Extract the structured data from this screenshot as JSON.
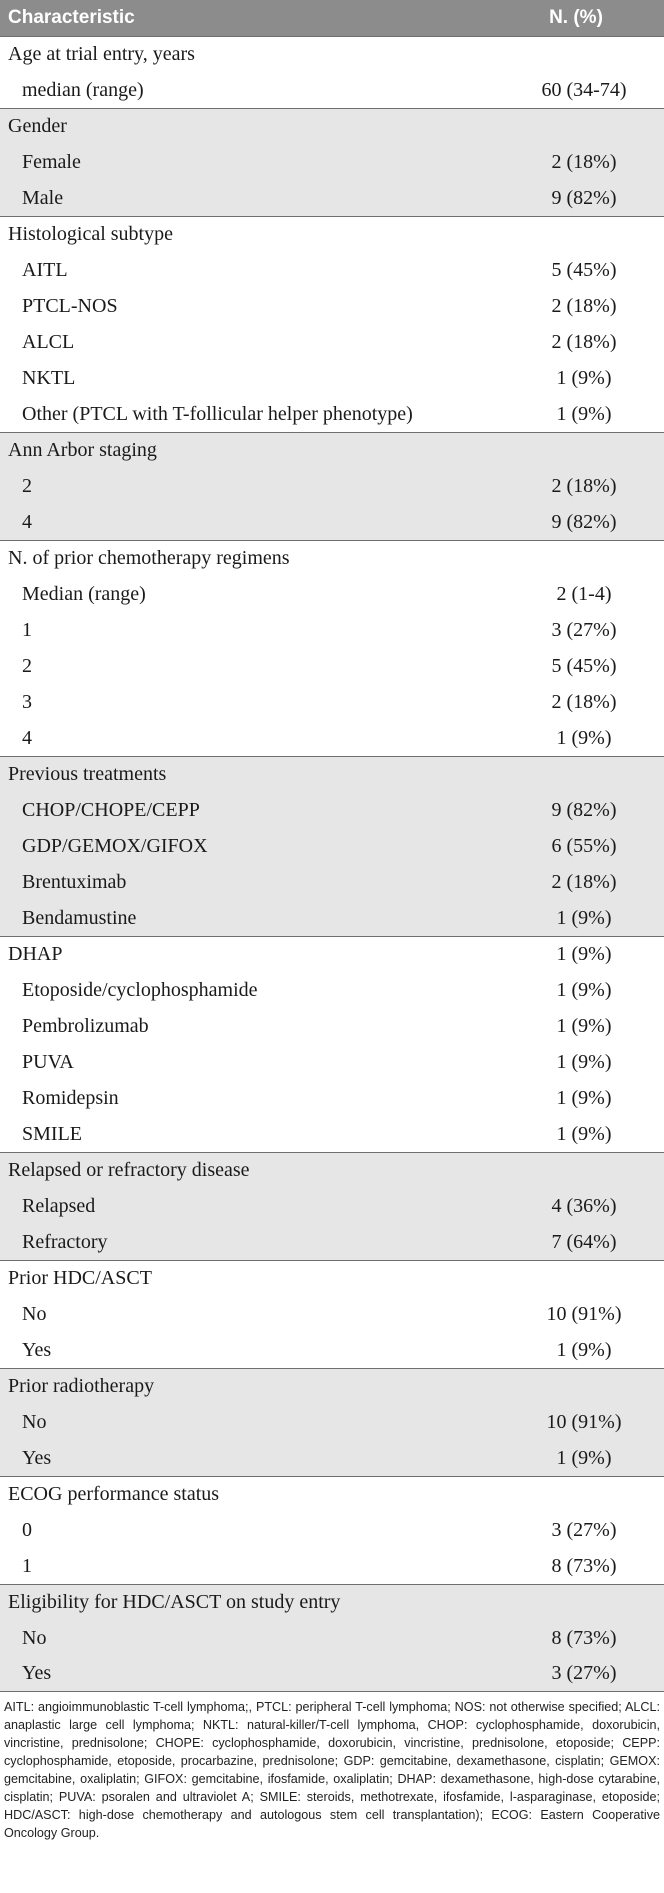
{
  "header": {
    "characteristic": "Characteristic",
    "n_pct": "N. (%)"
  },
  "rows": [
    {
      "label": "Age at trial entry, years",
      "value": "",
      "indent": false,
      "group_start": true,
      "shaded": false
    },
    {
      "label": "median (range)",
      "value": "60 (34-74)",
      "indent": true,
      "group_start": false,
      "shaded": false
    },
    {
      "label": "Gender",
      "value": "",
      "indent": false,
      "group_start": true,
      "shaded": true
    },
    {
      "label": "Female",
      "value": "2 (18%)",
      "indent": true,
      "group_start": false,
      "shaded": true
    },
    {
      "label": "Male",
      "value": "9 (82%)",
      "indent": true,
      "group_start": false,
      "shaded": true
    },
    {
      "label": "Histological subtype",
      "value": "",
      "indent": false,
      "group_start": true,
      "shaded": false
    },
    {
      "label": "AITL",
      "value": "5 (45%)",
      "indent": true,
      "group_start": false,
      "shaded": false
    },
    {
      "label": "PTCL-NOS",
      "value": "2 (18%)",
      "indent": true,
      "group_start": false,
      "shaded": false
    },
    {
      "label": "ALCL",
      "value": "2 (18%)",
      "indent": true,
      "group_start": false,
      "shaded": false
    },
    {
      "label": "NKTL",
      "value": "1 (9%)",
      "indent": true,
      "group_start": false,
      "shaded": false
    },
    {
      "label": "Other (PTCL with T-follicular helper phenotype)",
      "value": "1 (9%)",
      "indent": true,
      "group_start": false,
      "shaded": false
    },
    {
      "label": "Ann Arbor staging",
      "value": "",
      "indent": false,
      "group_start": true,
      "shaded": true
    },
    {
      "label": "2",
      "value": "2 (18%)",
      "indent": true,
      "group_start": false,
      "shaded": true
    },
    {
      "label": "4",
      "value": "9 (82%)",
      "indent": true,
      "group_start": false,
      "shaded": true
    },
    {
      "label": "N. of prior chemotherapy regimens",
      "value": "",
      "indent": false,
      "group_start": true,
      "shaded": false
    },
    {
      "label": "Median (range)",
      "value": "2 (1-4)",
      "indent": true,
      "group_start": false,
      "shaded": false
    },
    {
      "label": "1",
      "value": "3 (27%)",
      "indent": true,
      "group_start": false,
      "shaded": false
    },
    {
      "label": "2",
      "value": "5 (45%)",
      "indent": true,
      "group_start": false,
      "shaded": false
    },
    {
      "label": "3",
      "value": "2 (18%)",
      "indent": true,
      "group_start": false,
      "shaded": false
    },
    {
      "label": "4",
      "value": "1 (9%)",
      "indent": true,
      "group_start": false,
      "shaded": false
    },
    {
      "label": "Previous treatments",
      "value": "",
      "indent": false,
      "group_start": true,
      "shaded": true
    },
    {
      "label": "CHOP/CHOPE/CEPP",
      "value": "9 (82%)",
      "indent": true,
      "group_start": false,
      "shaded": true
    },
    {
      "label": "GDP/GEMOX/GIFOX",
      "value": "6 (55%)",
      "indent": true,
      "group_start": false,
      "shaded": true
    },
    {
      "label": "Brentuximab",
      "value": "2 (18%)",
      "indent": true,
      "group_start": false,
      "shaded": true
    },
    {
      "label": "Bendamustine",
      "value": "1 (9%)",
      "indent": true,
      "group_start": false,
      "shaded": true
    },
    {
      "label": "DHAP",
      "value": "1 (9%)",
      "indent": false,
      "group_start": true,
      "shaded": false
    },
    {
      "label": "Etoposide/cyclophosphamide",
      "value": "1 (9%)",
      "indent": true,
      "group_start": false,
      "shaded": false
    },
    {
      "label": "Pembrolizumab",
      "value": "1 (9%)",
      "indent": true,
      "group_start": false,
      "shaded": false
    },
    {
      "label": "PUVA",
      "value": "1 (9%)",
      "indent": true,
      "group_start": false,
      "shaded": false
    },
    {
      "label": "Romidepsin",
      "value": "1 (9%)",
      "indent": true,
      "group_start": false,
      "shaded": false
    },
    {
      "label": "SMILE",
      "value": "1 (9%)",
      "indent": true,
      "group_start": false,
      "shaded": false
    },
    {
      "label": "Relapsed or refractory disease",
      "value": "",
      "indent": false,
      "group_start": true,
      "shaded": true
    },
    {
      "label": "Relapsed",
      "value": "4 (36%)",
      "indent": true,
      "group_start": false,
      "shaded": true
    },
    {
      "label": "Refractory",
      "value": "7 (64%)",
      "indent": true,
      "group_start": false,
      "shaded": true
    },
    {
      "label": "Prior HDC/ASCT",
      "value": "",
      "indent": false,
      "group_start": true,
      "shaded": false
    },
    {
      "label": "No",
      "value": "10 (91%)",
      "indent": true,
      "group_start": false,
      "shaded": false
    },
    {
      "label": "Yes",
      "value": "1 (9%)",
      "indent": true,
      "group_start": false,
      "shaded": false
    },
    {
      "label": "Prior radiotherapy",
      "value": "",
      "indent": false,
      "group_start": true,
      "shaded": true
    },
    {
      "label": "No",
      "value": "10 (91%)",
      "indent": true,
      "group_start": false,
      "shaded": true
    },
    {
      "label": "Yes",
      "value": "1 (9%)",
      "indent": true,
      "group_start": false,
      "shaded": true
    },
    {
      "label": "ECOG performance status",
      "value": "",
      "indent": false,
      "group_start": true,
      "shaded": false
    },
    {
      "label": "0",
      "value": "3 (27%)",
      "indent": true,
      "group_start": false,
      "shaded": false
    },
    {
      "label": "1",
      "value": "8 (73%)",
      "indent": true,
      "group_start": false,
      "shaded": false
    },
    {
      "label": "Eligibility for HDC/ASCT on study entry",
      "value": "",
      "indent": false,
      "group_start": true,
      "shaded": true
    },
    {
      "label": "No",
      "value": "8 (73%)",
      "indent": true,
      "group_start": false,
      "shaded": true
    },
    {
      "label": "Yes",
      "value": "3 (27%)",
      "indent": true,
      "group_start": false,
      "shaded": true
    }
  ],
  "footnote": "AITL: angioimmunoblastic T-cell lymphoma;, PTCL: peripheral T-cell lymphoma; NOS: not otherwise specified; ALCL: anaplastic large cell lymphoma; NKTL: natural-killer/T-cell lymphoma, CHOP: cyclophosphamide, doxorubicin, vincristine, prednisolone; CHOPE: cyclophosphamide, doxorubicin, vincristine, prednisolone, etoposide; CEPP: cyclophosphamide, etoposide, procarbazine, prednisolone; GDP: gemcitabine, dexamethasone, cisplatin; GEMOX: gemcitabine, oxaliplatin; GIFOX: gemcitabine, ifosfamide, oxaliplatin; DHAP: dexamethasone, high-dose cytarabine, cisplatin; PUVA: psoralen and ultraviolet A; SMILE: steroids, methotrexate, ifosfamide, l-asparaginase, etoposide; HDC/ASCT: high-dose chemotherapy and autologous stem cell transplantation); ECOG: Eastern Cooperative Oncology Group."
}
